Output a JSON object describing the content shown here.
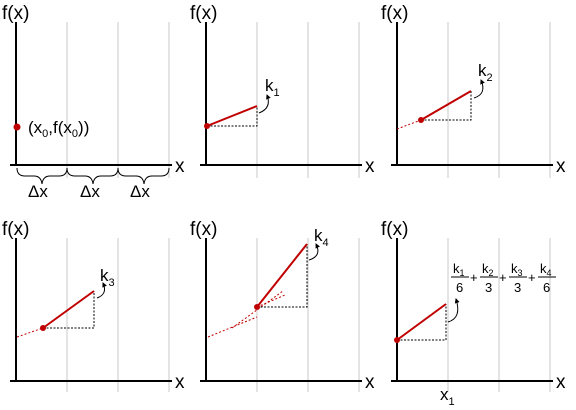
{
  "colors": {
    "red": "#c00000",
    "grid": "#c8c8c8",
    "axis": "#000000"
  },
  "panels": [
    {
      "f_label": "f(x)",
      "x_label": "x",
      "point_label": {
        "main_x": "(x",
        "sub_0": "0",
        "mid": ",f(x",
        "sub_1": "0",
        "end": "))"
      },
      "delta_labels": [
        "Δx",
        "Δx",
        "Δx"
      ]
    },
    {
      "f_label": "f(x)",
      "x_label": "x",
      "k_label": {
        "k": "k",
        "sub": "1"
      }
    },
    {
      "f_label": "f(x)",
      "x_label": "x",
      "k_label": {
        "k": "k",
        "sub": "2"
      }
    },
    {
      "f_label": "f(x)",
      "x_label": "x",
      "k_label": {
        "k": "k",
        "sub": "3"
      }
    },
    {
      "f_label": "f(x)",
      "x_label": "x",
      "k_label": {
        "k": "k",
        "sub": "4"
      }
    },
    {
      "f_label": "f(x)",
      "x_label": "x",
      "x1_label": {
        "x": "x",
        "sub": "1"
      },
      "formula": {
        "terms": [
          {
            "k": "k",
            "sub": "1",
            "den": "6"
          },
          {
            "k": "k",
            "sub": "2",
            "den": "3"
          },
          {
            "k": "k",
            "sub": "3",
            "den": "3"
          },
          {
            "k": "k",
            "sub": "4",
            "den": "6"
          }
        ],
        "plus": "+"
      }
    }
  ]
}
